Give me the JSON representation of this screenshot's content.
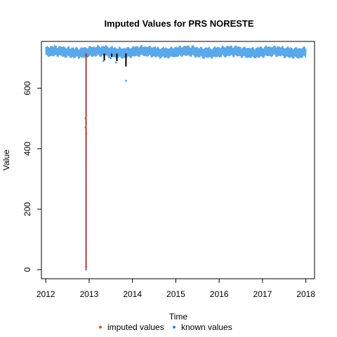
{
  "chart_data": {
    "type": "line",
    "title": "Imputed Values for  PRS NORESTE",
    "xlabel": "Time",
    "ylabel": "Value",
    "xlim": [
      2011.9,
      2018.2
    ],
    "ylim": [
      -30,
      755
    ],
    "x_ticks": [
      2012,
      2013,
      2014,
      2015,
      2016,
      2017,
      2018
    ],
    "x_tick_labels": [
      "2012",
      "2013",
      "2014",
      "2015",
      "2016",
      "2017",
      "2018"
    ],
    "y_ticks": [
      0,
      200,
      400,
      600
    ],
    "y_tick_labels": [
      "0",
      "200",
      "400",
      "600"
    ],
    "grid": false,
    "legend_position": "bottom",
    "series": [
      {
        "name": "imputed values",
        "color": "#e8453c",
        "points": [
          {
            "x": 2012.92,
            "y": 500
          },
          {
            "x": 2012.92,
            "y": 470
          },
          {
            "x": 2012.93,
            "y": 10
          },
          {
            "x": 2012.93,
            "y": 450
          }
        ]
      },
      {
        "name": "known values",
        "color": "#5ba8e8",
        "band": {
          "x_start": 2012.0,
          "x_end": 2018.0,
          "low": 708,
          "high": 738
        },
        "dips": [
          {
            "x": 2012.93,
            "y": 0
          },
          {
            "x": 2013.33,
            "y": 690
          },
          {
            "x": 2013.5,
            "y": 700
          },
          {
            "x": 2013.62,
            "y": 685
          },
          {
            "x": 2013.85,
            "y": 625
          }
        ]
      }
    ],
    "imputed_segments": [
      {
        "x": 2012.93,
        "y_start": 715,
        "y_end": 0
      },
      {
        "x": 2013.35,
        "y_start": 715,
        "y_end": 692
      },
      {
        "x": 2013.52,
        "y_start": 715,
        "y_end": 703
      },
      {
        "x": 2013.64,
        "y_start": 715,
        "y_end": 690
      },
      {
        "x": 2013.85,
        "y_start": 715,
        "y_end": 672
      }
    ],
    "legend": [
      {
        "label": "imputed values",
        "color": "#e8453c"
      },
      {
        "label": "known values",
        "color": "#3b7fc4"
      }
    ]
  }
}
